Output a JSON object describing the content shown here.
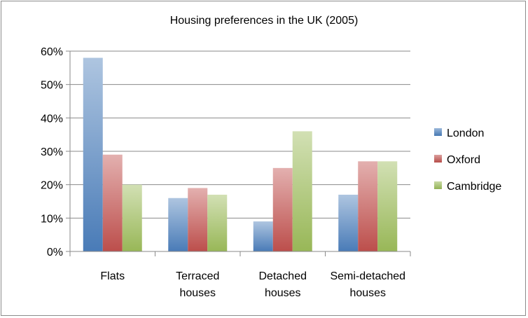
{
  "chart_data": {
    "type": "bar",
    "title": "Housing preferences in the UK (2005)",
    "xlabel": "",
    "ylabel": "",
    "categories": [
      [
        "Flats"
      ],
      [
        "Terraced",
        "houses"
      ],
      [
        "Detached",
        "houses"
      ],
      [
        "Semi-detached",
        "houses"
      ]
    ],
    "series": [
      {
        "name": "London",
        "values": [
          58,
          16,
          9,
          17
        ],
        "color": "#4a7ebb"
      },
      {
        "name": "Oxford",
        "values": [
          29,
          19,
          25,
          27
        ],
        "color": "#c0504d"
      },
      {
        "name": "Cambridge",
        "values": [
          20,
          17,
          36,
          27
        ],
        "color": "#9bbb59"
      }
    ],
    "ylim": [
      0,
      60
    ],
    "yticks": [
      0,
      10,
      20,
      30,
      40,
      50,
      60
    ],
    "ytick_labels": [
      "0%",
      "10%",
      "20%",
      "30%",
      "40%",
      "50%",
      "60%"
    ],
    "grid": true,
    "legend_position": "right"
  }
}
